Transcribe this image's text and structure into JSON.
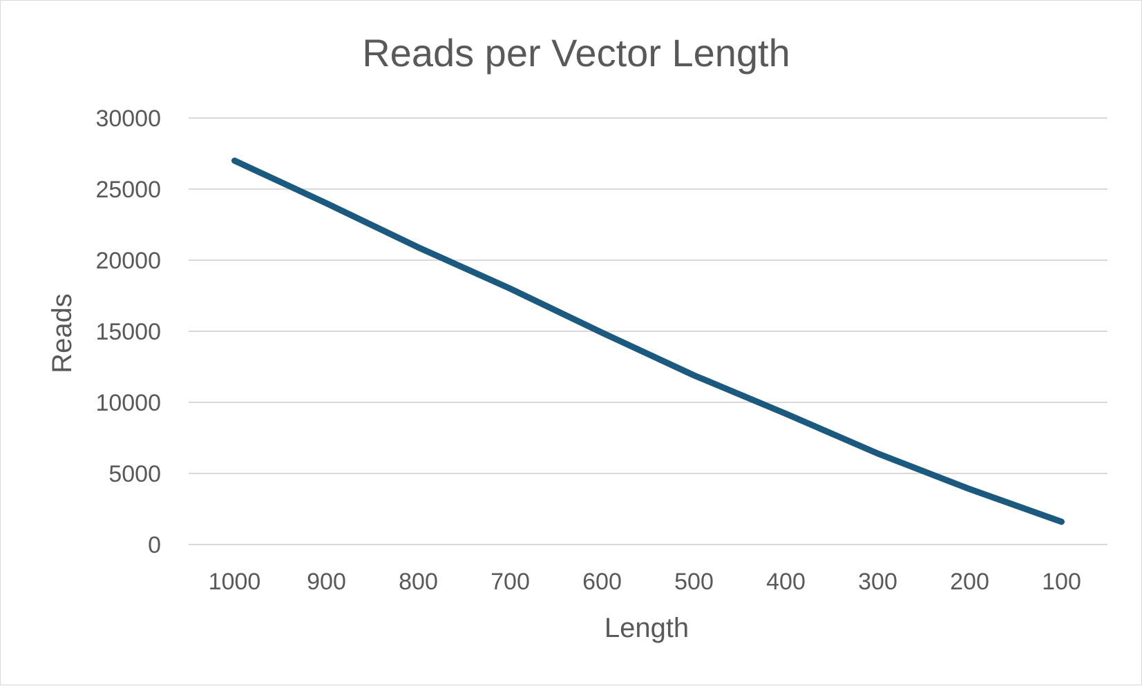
{
  "chart_data": {
    "type": "line",
    "title": "Reads per Vector Length",
    "xlabel": "Length",
    "ylabel": "Reads",
    "categories": [
      "1000",
      "900",
      "800",
      "700",
      "600",
      "500",
      "400",
      "300",
      "200",
      "100"
    ],
    "series": [
      {
        "values": [
          27000,
          24000,
          20900,
          18000,
          14900,
          11900,
          9200,
          6400,
          3900,
          1600
        ]
      }
    ],
    "ylim": [
      0,
      30000
    ],
    "yticks": [
      "0",
      "5000",
      "10000",
      "15000",
      "20000",
      "25000",
      "30000"
    ],
    "grid": true,
    "legend": "none",
    "colors": {
      "series": "#1b5a7e",
      "grid": "#d9d9d9",
      "text": "#595959"
    }
  }
}
